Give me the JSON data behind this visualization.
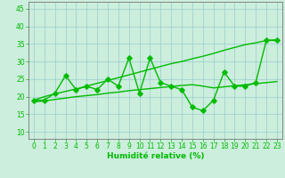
{
  "x": [
    0,
    1,
    2,
    3,
    4,
    5,
    6,
    7,
    8,
    9,
    10,
    11,
    12,
    13,
    14,
    15,
    16,
    17,
    18,
    19,
    20,
    21,
    22,
    23
  ],
  "y_main": [
    19,
    19,
    21,
    26,
    22,
    23,
    22,
    25,
    23,
    31,
    21,
    31,
    24,
    23,
    22,
    17,
    16,
    19,
    27,
    23,
    23,
    24,
    36,
    36
  ],
  "y_upper": [
    19,
    20.0,
    20.8,
    21.5,
    22.2,
    23.0,
    23.8,
    24.6,
    25.4,
    26.2,
    27.0,
    27.8,
    28.6,
    29.4,
    30.0,
    30.8,
    31.5,
    32.3,
    33.2,
    34.0,
    34.8,
    35.3,
    36.0,
    36.2
  ],
  "y_lower": [
    18.5,
    18.8,
    19.2,
    19.6,
    20.0,
    20.3,
    20.6,
    21.0,
    21.3,
    21.7,
    22.0,
    22.3,
    22.6,
    22.9,
    23.2,
    23.4,
    23.0,
    22.5,
    22.8,
    23.1,
    23.4,
    23.7,
    24.0,
    24.3
  ],
  "line_color": "#00bb00",
  "bg_color": "#cceedd",
  "grid_color": "#99cccc",
  "xlabel": "Humidité relative (%)",
  "xlim": [
    -0.5,
    23.5
  ],
  "ylim": [
    8,
    47
  ],
  "yticks": [
    10,
    15,
    20,
    25,
    30,
    35,
    40,
    45
  ],
  "xticks": [
    0,
    1,
    2,
    3,
    4,
    5,
    6,
    7,
    8,
    9,
    10,
    11,
    12,
    13,
    14,
    15,
    16,
    17,
    18,
    19,
    20,
    21,
    22,
    23
  ],
  "marker_size": 2.8,
  "line_width": 1.0,
  "tick_fontsize": 5.5,
  "xlabel_fontsize": 6.5
}
